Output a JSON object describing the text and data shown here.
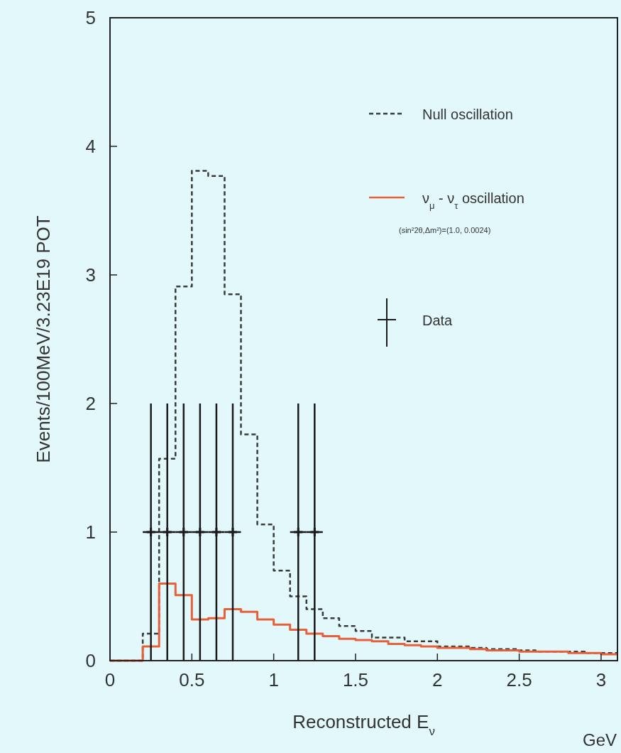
{
  "chart_data": {
    "type": "histogram",
    "xlabel": "Reconstructed E$_{ν}$",
    "ylabel": "Events/100MeV/3.23E19 POT",
    "annotations": [
      "(sin²2θ,Δm²)=(1.0, 0.0024)",
      "GeV"
    ],
    "bins": [
      0,
      0.1,
      0.2,
      0.3,
      0.4,
      0.5,
      0.6,
      0.7,
      0.8,
      0.9,
      1.0,
      1.1,
      1.2,
      1.3,
      1.4,
      1.5,
      1.6,
      1.7,
      1.8,
      1.9,
      2.0,
      2.1,
      2.2,
      2.3,
      2.4,
      2.5,
      2.6,
      2.7,
      2.8,
      2.9,
      3.0,
      3.1
    ],
    "series": [
      {
        "name": "Null oscillation",
        "color": "#3a3a3a",
        "line_style": "dashed",
        "values": [
          0,
          0,
          0.21,
          1.57,
          2.91,
          3.81,
          3.77,
          2.85,
          1.76,
          1.06,
          0.7,
          0.5,
          0.4,
          0.33,
          0.27,
          0.23,
          0.18,
          0.18,
          0.15,
          0.15,
          0.11,
          0.11,
          0.1,
          0.09,
          0.09,
          0.08,
          0.07,
          0.07,
          0.07,
          0.06,
          0.06
        ]
      },
      {
        "name": "ν$_{μ}$ - ν$_{τ}$ oscillation",
        "color": "#e8603a",
        "line_style": "solid",
        "values": [
          0,
          0,
          0.11,
          0.6,
          0.51,
          0.32,
          0.33,
          0.4,
          0.38,
          0.32,
          0.28,
          0.24,
          0.21,
          0.19,
          0.17,
          0.16,
          0.15,
          0.13,
          0.12,
          0.11,
          0.1,
          0.1,
          0.09,
          0.08,
          0.08,
          0.07,
          0.07,
          0.07,
          0.06,
          0.06,
          0.05
        ]
      },
      {
        "name": "Data",
        "type": "scatter",
        "color": "#1a1a1a",
        "marker": "cross",
        "x": [
          0.25,
          0.35,
          0.45,
          0.55,
          0.65,
          0.75,
          1.15,
          1.25
        ],
        "values": [
          1,
          1,
          1,
          1,
          1,
          1,
          1,
          1
        ],
        "errors": [
          1,
          1,
          1,
          1,
          1,
          1,
          1,
          1
        ],
        "xerrors": [
          0.05,
          0.05,
          0.05,
          0.05,
          0.05,
          0.05,
          0.05,
          0.05
        ]
      }
    ],
    "xlim": [
      0,
      3.1
    ],
    "xticks": [
      0,
      0.5,
      1,
      1.5,
      2,
      2.5,
      3
    ],
    "ylim": [
      0,
      5
    ],
    "yticks": [
      0,
      1,
      2,
      3,
      4,
      5
    ],
    "grid": false,
    "legend": "top right"
  }
}
